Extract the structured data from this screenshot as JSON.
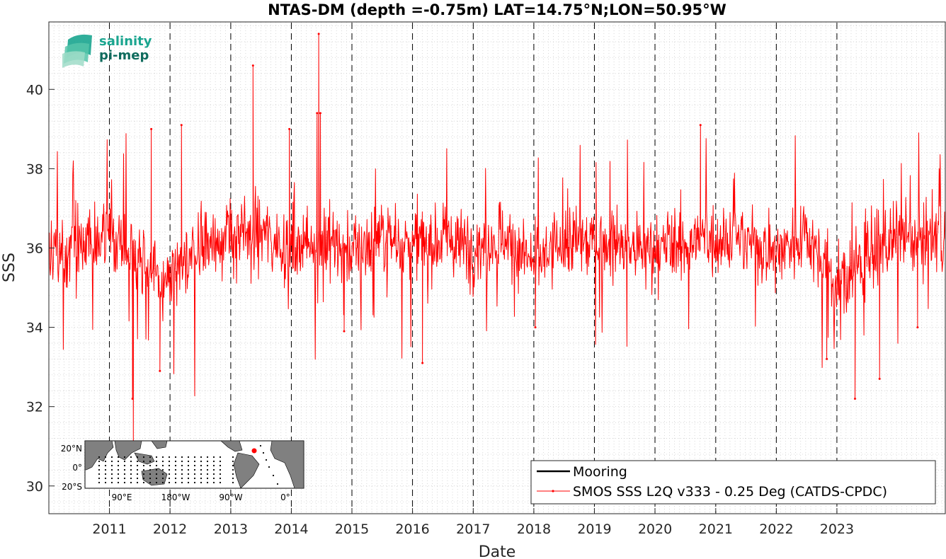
{
  "chart_data": {
    "type": "line",
    "title": "NTAS-DM (depth =-0.75m) LAT=14.75°N;LON=50.95°W",
    "xlabel": "Date",
    "ylabel": "SSS",
    "xlim": [
      "2010-01-01",
      "2024-10-15"
    ],
    "ylim": [
      29.3,
      41.7
    ],
    "yticks": [
      30,
      32,
      34,
      36,
      38,
      40
    ],
    "xticks": [
      "2011",
      "2012",
      "2013",
      "2014",
      "2015",
      "2016",
      "2017",
      "2018",
      "2019",
      "2020",
      "2021",
      "2022",
      "2023"
    ],
    "year_boundaries_dashed": true,
    "grid": "minor dotted",
    "legend_position": "bottom-right",
    "series": [
      {
        "name": "Mooring",
        "color": "#000000",
        "values": []
      },
      {
        "name": "SMOS SSS L2Q v333 - 0.25 Deg (CATDS-CPDC)",
        "color": "#ff0000",
        "marker": "dot",
        "baseline": [
          [
            "2010-01-01",
            36.0
          ],
          [
            "2010-07-01",
            36.0
          ],
          [
            "2011-01-01",
            36.4
          ],
          [
            "2011-07-01",
            35.9
          ],
          [
            "2011-11-01",
            35.0
          ],
          [
            "2012-03-01",
            35.4
          ],
          [
            "2012-07-01",
            36.1
          ],
          [
            "2013-01-01",
            36.3
          ],
          [
            "2013-07-01",
            36.4
          ],
          [
            "2014-01-01",
            36.0
          ],
          [
            "2014-07-01",
            36.3
          ],
          [
            "2015-01-01",
            35.9
          ],
          [
            "2015-07-01",
            36.3
          ],
          [
            "2016-01-01",
            36.1
          ],
          [
            "2016-07-01",
            36.2
          ],
          [
            "2017-01-01",
            36.0
          ],
          [
            "2017-07-01",
            36.3
          ],
          [
            "2018-01-01",
            35.6
          ],
          [
            "2018-07-01",
            36.1
          ],
          [
            "2019-01-01",
            36.2
          ],
          [
            "2019-07-01",
            36.0
          ],
          [
            "2020-01-01",
            35.9
          ],
          [
            "2020-07-01",
            36.1
          ],
          [
            "2021-01-01",
            36.3
          ],
          [
            "2021-07-01",
            36.2
          ],
          [
            "2022-01-01",
            35.9
          ],
          [
            "2022-07-01",
            36.4
          ],
          [
            "2023-01-01",
            35.0
          ],
          [
            "2023-07-01",
            35.8
          ],
          [
            "2024-01-01",
            36.2
          ],
          [
            "2024-10-15",
            36.4
          ]
        ],
        "noise_sd": 0.65,
        "extremes": [
          [
            "2011-05-25",
            31.1
          ],
          [
            "2011-05-20",
            32.2
          ],
          [
            "2011-09-10",
            39.0
          ],
          [
            "2011-11-01",
            32.9
          ],
          [
            "2012-03-10",
            39.1
          ],
          [
            "2013-05-15",
            40.6
          ],
          [
            "2013-12-20",
            39.0
          ],
          [
            "2014-06-15",
            41.4
          ],
          [
            "2014-06-05",
            39.4
          ],
          [
            "2014-06-25",
            39.4
          ],
          [
            "2014-11-15",
            33.9
          ],
          [
            "2016-03-01",
            33.1
          ],
          [
            "2018-01-10",
            34.0
          ],
          [
            "2020-10-01",
            39.1
          ],
          [
            "2022-11-01",
            33.2
          ],
          [
            "2023-04-20",
            32.2
          ],
          [
            "2023-09-15",
            32.7
          ],
          [
            "2024-05-01",
            34.0
          ]
        ]
      }
    ]
  },
  "logo": {
    "line1": "salinity",
    "line2": "pi-mep"
  },
  "inset_map": {
    "lat_labels": [
      "20°N",
      "0°",
      "20°S"
    ],
    "lon_labels": [
      "90°E",
      "180°W",
      "90°W",
      "0°"
    ]
  }
}
